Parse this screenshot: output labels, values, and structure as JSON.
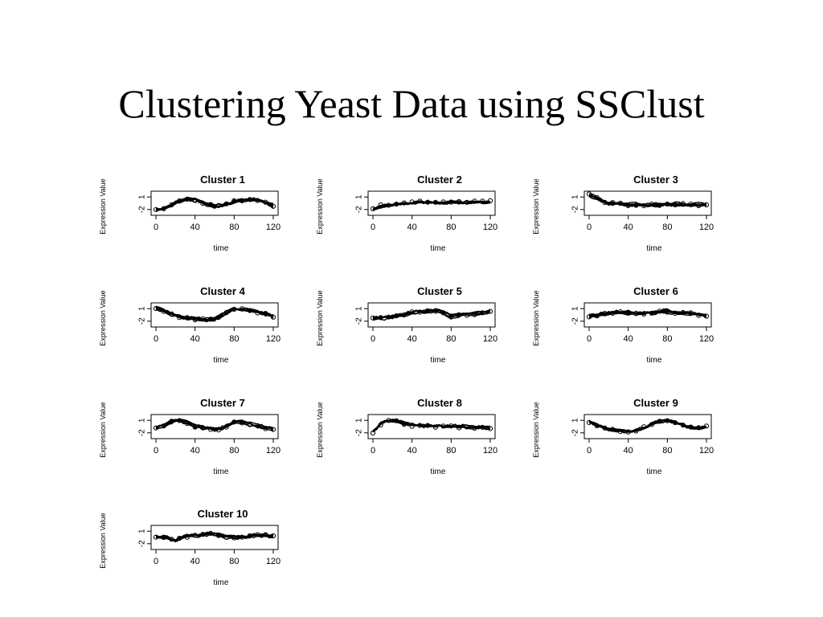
{
  "slide": {
    "title": "Clustering Yeast Data using SSClust"
  },
  "chart_data": [
    {
      "type": "line",
      "title": "Cluster 1",
      "xlabel": "time",
      "ylabel": "Expression Value",
      "xlim": [
        0,
        120
      ],
      "x_ticks": [
        "0",
        "40",
        "80",
        "120"
      ],
      "y_ticks": [
        "1",
        "-2"
      ],
      "ylim": [
        -3,
        2
      ],
      "series_profile": {
        "x": [
          0,
          10,
          20,
          30,
          40,
          50,
          60,
          70,
          80,
          90,
          100,
          110,
          120
        ],
        "y": [
          -2.0,
          -1.6,
          -0.3,
          0.6,
          0.4,
          -0.5,
          -1.2,
          -0.8,
          -0.1,
          0.4,
          0.5,
          0.0,
          -1.0
        ]
      }
    },
    {
      "type": "line",
      "title": "Cluster 2",
      "xlabel": "time",
      "ylabel": "Expression Value",
      "xlim": [
        0,
        120
      ],
      "x_ticks": [
        "0",
        "40",
        "80",
        "120"
      ],
      "y_ticks": [
        "1",
        "-2"
      ],
      "ylim": [
        -3,
        2
      ],
      "series_profile": {
        "x": [
          0,
          10,
          20,
          30,
          40,
          50,
          60,
          70,
          80,
          90,
          100,
          110,
          120
        ],
        "y": [
          -1.7,
          -1.0,
          -0.6,
          -0.3,
          -0.2,
          0.0,
          -0.1,
          -0.2,
          0.0,
          -0.1,
          0.0,
          -0.1,
          0.0
        ]
      }
    },
    {
      "type": "line",
      "title": "Cluster 3",
      "xlabel": "time",
      "ylabel": "Expression Value",
      "xlim": [
        0,
        120
      ],
      "x_ticks": [
        "0",
        "40",
        "80",
        "120"
      ],
      "y_ticks": [
        "1",
        "-2"
      ],
      "ylim": [
        -3,
        2
      ],
      "series_profile": {
        "x": [
          0,
          10,
          20,
          30,
          40,
          50,
          60,
          70,
          80,
          90,
          100,
          110,
          120
        ],
        "y": [
          1.6,
          0.4,
          -0.4,
          -0.7,
          -0.9,
          -0.8,
          -0.9,
          -0.8,
          -0.7,
          -0.8,
          -0.8,
          -0.9,
          -0.8
        ]
      }
    },
    {
      "type": "line",
      "title": "Cluster 4",
      "xlabel": "time",
      "ylabel": "Expression Value",
      "xlim": [
        0,
        120
      ],
      "x_ticks": [
        "0",
        "40",
        "80",
        "120"
      ],
      "y_ticks": [
        "1",
        "-2"
      ],
      "ylim": [
        -3,
        2
      ],
      "series_profile": {
        "x": [
          0,
          10,
          20,
          30,
          40,
          50,
          60,
          70,
          80,
          90,
          100,
          110,
          120
        ],
        "y": [
          1.2,
          0.2,
          -0.8,
          -1.3,
          -1.5,
          -1.7,
          -1.6,
          -0.2,
          0.9,
          0.8,
          0.4,
          -0.2,
          -0.9
        ]
      }
    },
    {
      "type": "line",
      "title": "Cluster 5",
      "xlabel": "time",
      "ylabel": "Expression Value",
      "xlim": [
        0,
        120
      ],
      "x_ticks": [
        "0",
        "40",
        "80",
        "120"
      ],
      "y_ticks": [
        "1",
        "-2"
      ],
      "ylim": [
        -3,
        2
      ],
      "series_profile": {
        "x": [
          0,
          10,
          20,
          30,
          40,
          50,
          60,
          70,
          80,
          90,
          100,
          110,
          120
        ],
        "y": [
          -1.4,
          -1.2,
          -1.0,
          -0.5,
          0.0,
          0.3,
          0.5,
          0.3,
          -0.8,
          -0.4,
          -0.3,
          0.0,
          0.2
        ]
      }
    },
    {
      "type": "line",
      "title": "Cluster 6",
      "xlabel": "time",
      "ylabel": "Expression Value",
      "xlim": [
        0,
        120
      ],
      "x_ticks": [
        "0",
        "40",
        "80",
        "120"
      ],
      "y_ticks": [
        "1",
        "-2"
      ],
      "ylim": [
        -3,
        2
      ],
      "series_profile": {
        "x": [
          0,
          10,
          20,
          30,
          40,
          50,
          60,
          70,
          80,
          90,
          100,
          110,
          120
        ],
        "y": [
          -0.8,
          -0.5,
          -0.2,
          0.2,
          0.0,
          -0.3,
          0.0,
          0.2,
          0.4,
          -0.2,
          0.0,
          -0.3,
          -0.7
        ]
      }
    },
    {
      "type": "line",
      "title": "Cluster 7",
      "xlabel": "time",
      "ylabel": "Expression Value",
      "xlim": [
        0,
        120
      ],
      "x_ticks": [
        "0",
        "40",
        "80",
        "120"
      ],
      "y_ticks": [
        "1",
        "-2"
      ],
      "ylim": [
        -3,
        2
      ],
      "series_profile": {
        "x": [
          0,
          10,
          20,
          30,
          40,
          50,
          60,
          70,
          80,
          90,
          100,
          110,
          120
        ],
        "y": [
          -0.8,
          0.0,
          1.0,
          0.6,
          -0.4,
          -0.9,
          -1.3,
          -0.7,
          0.6,
          0.5,
          -0.2,
          -0.7,
          -1.0
        ]
      }
    },
    {
      "type": "line",
      "title": "Cluster 8",
      "xlabel": "time",
      "ylabel": "Expression Value",
      "xlim": [
        0,
        120
      ],
      "x_ticks": [
        "0",
        "40",
        "80",
        "120"
      ],
      "y_ticks": [
        "1",
        "-2"
      ],
      "ylim": [
        -3,
        2
      ],
      "series_profile": {
        "x": [
          0,
          10,
          20,
          30,
          40,
          50,
          60,
          70,
          80,
          90,
          100,
          110,
          120
        ],
        "y": [
          -1.8,
          0.6,
          0.9,
          0.3,
          -0.2,
          -0.4,
          -0.5,
          -0.6,
          -0.5,
          -0.6,
          -0.7,
          -0.8,
          -1.0
        ]
      }
    },
    {
      "type": "line",
      "title": "Cluster 9",
      "xlabel": "time",
      "ylabel": "Expression Value",
      "xlim": [
        0,
        120
      ],
      "x_ticks": [
        "0",
        "40",
        "80",
        "120"
      ],
      "y_ticks": [
        "1",
        "-2"
      ],
      "ylim": [
        -3,
        2
      ],
      "series_profile": {
        "x": [
          0,
          10,
          20,
          30,
          40,
          50,
          60,
          70,
          80,
          90,
          100,
          110,
          120
        ],
        "y": [
          0.6,
          -0.3,
          -1.1,
          -1.4,
          -1.6,
          -1.3,
          -0.4,
          0.9,
          1.0,
          0.4,
          -0.4,
          -0.9,
          -0.6
        ]
      }
    },
    {
      "type": "line",
      "title": "Cluster 10",
      "xlabel": "time",
      "ylabel": "Expression Value",
      "xlim": [
        0,
        120
      ],
      "x_ticks": [
        "0",
        "40",
        "80",
        "120"
      ],
      "y_ticks": [
        "1",
        "-2"
      ],
      "ylim": [
        -3,
        2
      ],
      "series_profile": {
        "x": [
          0,
          10,
          20,
          30,
          40,
          50,
          60,
          70,
          80,
          90,
          100,
          110,
          120
        ],
        "y": [
          -0.4,
          -0.6,
          -1.2,
          -0.3,
          0.0,
          0.2,
          0.4,
          -0.4,
          -0.5,
          -0.3,
          -0.1,
          0.0,
          -0.2
        ]
      }
    }
  ]
}
